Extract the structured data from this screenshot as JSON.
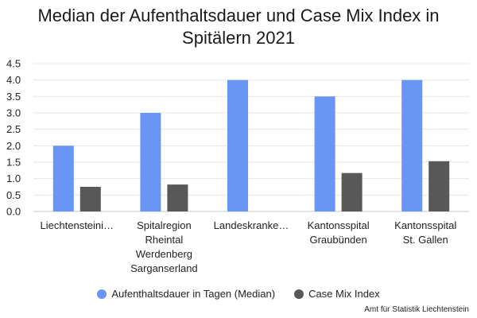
{
  "title_lines": [
    "Median der Aufenthaltsdauer und Case Mix Index in",
    "Spitälern 2021"
  ],
  "source": "Amt für Statistik Liechtenstein",
  "chart_data": {
    "type": "bar",
    "title": "Median der Aufenthaltsdauer und Case Mix Index in Spitälern 2021",
    "categories": [
      [
        "Liechtensteini…"
      ],
      [
        "Spitalregion",
        "Rheintal",
        "Werdenberg",
        "Sarganserland"
      ],
      [
        "Landeskranke…"
      ],
      [
        "Kantonsspital",
        "Graubünden"
      ],
      [
        "Kantonsspital",
        "St. Gallen"
      ]
    ],
    "series": [
      {
        "name": "Aufenthaltsdauer in Tagen (Median)",
        "color": "#6996f5",
        "values": [
          2.0,
          3.0,
          4.0,
          3.5,
          4.0
        ]
      },
      {
        "name": "Case Mix Index",
        "color": "#585858",
        "values": [
          0.75,
          0.82,
          null,
          1.17,
          1.53
        ]
      }
    ],
    "ylim": [
      0,
      4.5
    ],
    "yticks": [
      "0.0",
      "0.5",
      "1.0",
      "1.5",
      "2.0",
      "2.5",
      "3.0",
      "3.5",
      "4.0",
      "4.5"
    ],
    "grid": true,
    "legend_position": "bottom"
  }
}
